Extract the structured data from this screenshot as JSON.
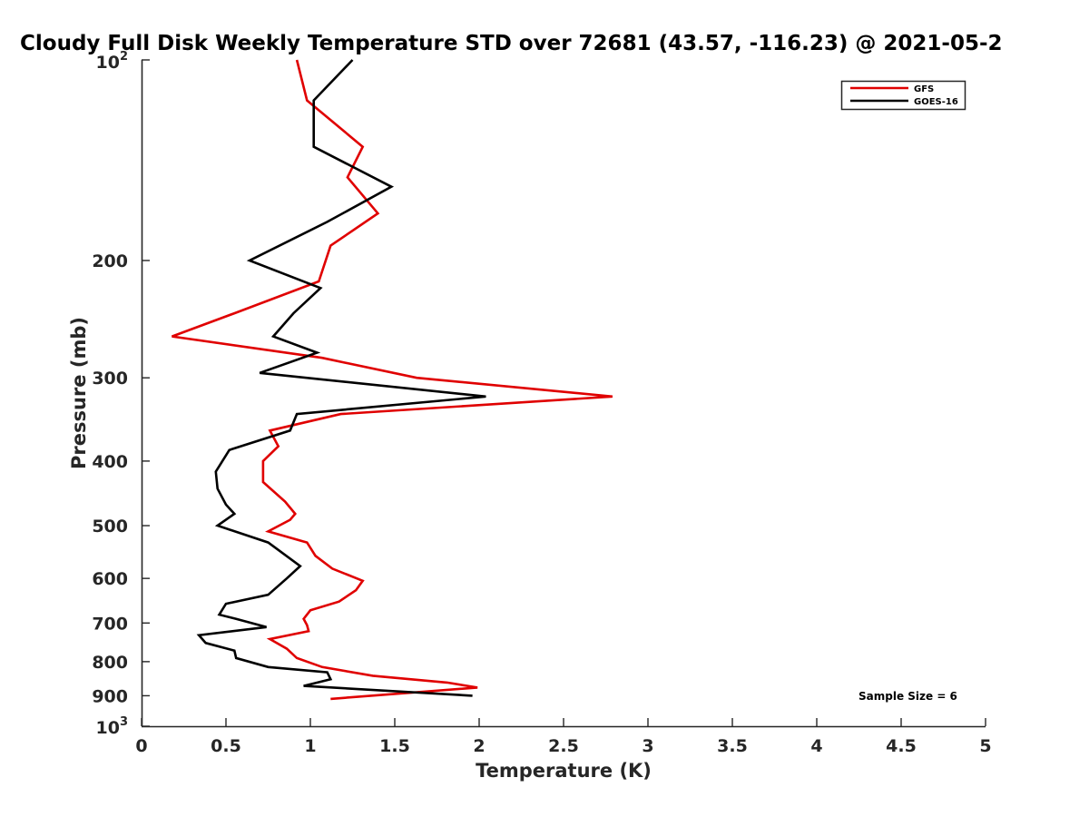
{
  "chart_data": {
    "type": "line",
    "title": "Cloudy Full Disk Weekly Temperature STD over 72681 (43.57, -116.23) @ 2021-05-2",
    "xlabel": "Temperature (K)",
    "ylabel": "Pressure (mb)",
    "xlim": [
      0,
      5
    ],
    "ylim": [
      100,
      1000
    ],
    "y_scale": "log",
    "y_reversed": true,
    "x_ticks": [
      "0",
      "0.5",
      "1",
      "1.5",
      "2",
      "2.5",
      "3",
      "3.5",
      "4",
      "4.5",
      "5"
    ],
    "y_ticks": [
      {
        "value": 100,
        "base": "10",
        "exp": "2"
      },
      {
        "value": 200,
        "label": "200"
      },
      {
        "value": 300,
        "label": "300"
      },
      {
        "value": 400,
        "label": "400"
      },
      {
        "value": 500,
        "label": "500"
      },
      {
        "value": 600,
        "label": "600"
      },
      {
        "value": 700,
        "label": "700"
      },
      {
        "value": 800,
        "label": "800"
      },
      {
        "value": 900,
        "label": "900"
      },
      {
        "value": 1000,
        "base": "10",
        "exp": "3"
      }
    ],
    "legend_position": "top-right",
    "grid": false,
    "annotation": "Sample Size = 6",
    "series": [
      {
        "name": "GFS",
        "color": "#e00000",
        "points": [
          [
            0.92,
            100
          ],
          [
            0.98,
            115
          ],
          [
            1.31,
            135
          ],
          [
            1.22,
            150
          ],
          [
            1.4,
            170
          ],
          [
            1.12,
            190
          ],
          [
            1.05,
            215
          ],
          [
            0.55,
            240
          ],
          [
            0.18,
            260
          ],
          [
            1.07,
            280
          ],
          [
            1.63,
            300
          ],
          [
            2.79,
            320
          ],
          [
            1.18,
            340
          ],
          [
            0.76,
            360
          ],
          [
            0.81,
            380
          ],
          [
            0.72,
            400
          ],
          [
            0.72,
            430
          ],
          [
            0.85,
            460
          ],
          [
            0.91,
            480
          ],
          [
            0.88,
            490
          ],
          [
            0.75,
            510
          ],
          [
            0.98,
            530
          ],
          [
            1.03,
            555
          ],
          [
            1.13,
            580
          ],
          [
            1.31,
            605
          ],
          [
            1.27,
            625
          ],
          [
            1.17,
            650
          ],
          [
            1.0,
            670
          ],
          [
            0.96,
            690
          ],
          [
            0.98,
            705
          ],
          [
            0.99,
            720
          ],
          [
            0.76,
            740
          ],
          [
            0.86,
            765
          ],
          [
            0.92,
            790
          ],
          [
            1.07,
            815
          ],
          [
            1.37,
            840
          ],
          [
            1.81,
            860
          ],
          [
            1.99,
            875
          ],
          [
            1.12,
            910
          ]
        ]
      },
      {
        "name": "GOES-16",
        "color": "#000000",
        "points": [
          [
            1.25,
            100
          ],
          [
            1.02,
            115
          ],
          [
            1.02,
            135
          ],
          [
            1.48,
            155
          ],
          [
            1.1,
            175
          ],
          [
            0.64,
            200
          ],
          [
            1.06,
            220
          ],
          [
            0.9,
            240
          ],
          [
            0.78,
            260
          ],
          [
            1.04,
            275
          ],
          [
            0.7,
            295
          ],
          [
            2.04,
            320
          ],
          [
            0.92,
            340
          ],
          [
            0.88,
            360
          ],
          [
            0.52,
            385
          ],
          [
            0.44,
            415
          ],
          [
            0.45,
            440
          ],
          [
            0.5,
            465
          ],
          [
            0.55,
            480
          ],
          [
            0.45,
            500
          ],
          [
            0.75,
            530
          ],
          [
            0.94,
            575
          ],
          [
            0.86,
            600
          ],
          [
            0.75,
            635
          ],
          [
            0.5,
            655
          ],
          [
            0.46,
            680
          ],
          [
            0.56,
            690
          ],
          [
            0.74,
            710
          ],
          [
            0.34,
            730
          ],
          [
            0.38,
            750
          ],
          [
            0.55,
            770
          ],
          [
            0.56,
            790
          ],
          [
            0.75,
            815
          ],
          [
            1.1,
            830
          ],
          [
            1.12,
            850
          ],
          [
            0.96,
            870
          ],
          [
            1.96,
            900
          ]
        ]
      }
    ]
  }
}
